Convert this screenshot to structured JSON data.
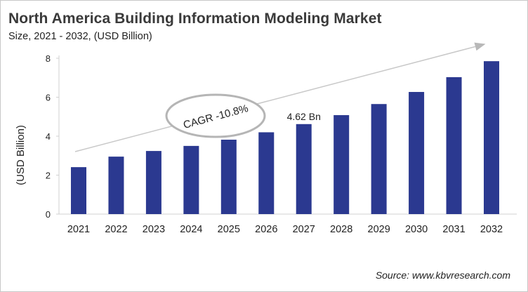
{
  "chart_data": {
    "type": "bar",
    "title": "North America Building Information Modeling Market",
    "subtitle": "Size, 2021 - 2032, (USD Billion)",
    "xlabel": "",
    "ylabel": "(USD Billion)",
    "ylim": [
      0,
      8
    ],
    "yticks": [
      "0",
      "2",
      "4",
      "6",
      "8"
    ],
    "categories": [
      "2021",
      "2022",
      "2023",
      "2024",
      "2025",
      "2026",
      "2027",
      "2028",
      "2029",
      "2030",
      "2031",
      "2032"
    ],
    "values": [
      2.41,
      2.95,
      3.24,
      3.5,
      3.82,
      4.2,
      4.62,
      5.08,
      5.65,
      6.27,
      7.03,
      7.85
    ],
    "data_label": {
      "category": "2027",
      "text": "4.62 Bn"
    },
    "annotation": "CAGR -10.8%",
    "grid": false,
    "bar_color": "#2b3990",
    "source": "Source: www.kbvresearch.com"
  }
}
